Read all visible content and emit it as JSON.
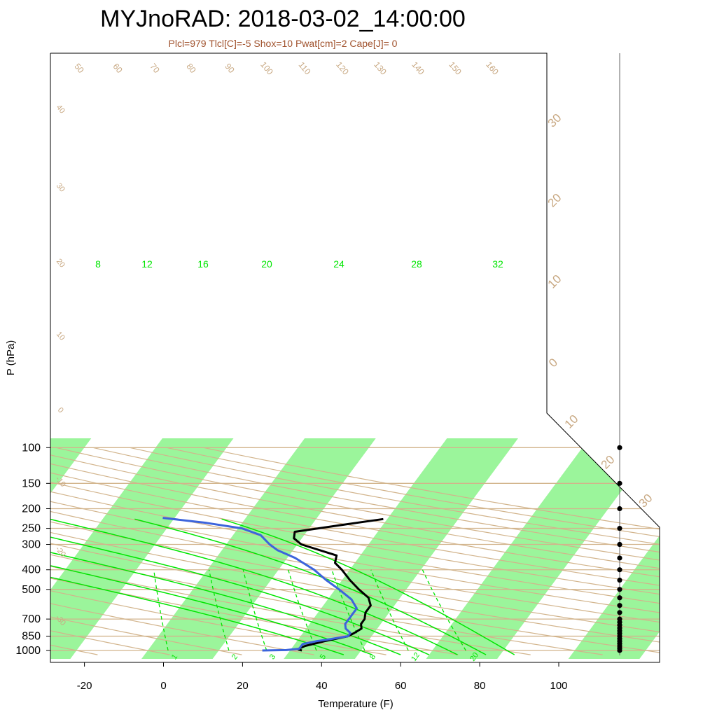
{
  "chart_data": {
    "type": "line",
    "title": "MYJnoRAD: 2018-03-02_14:00:00",
    "subtitle": "Plcl=979 Tlcl[C]=-5 Shox=10 Pwat[cm]=2 Cape[J]= 0",
    "xlabel": "Temperature (F)",
    "ylabel": "P (hPa)",
    "xlim": [
      -28,
      124
    ],
    "ylim": [
      1050,
      100
    ],
    "y_scale": "log",
    "xticks": [
      -20,
      0,
      20,
      40,
      60,
      80,
      100
    ],
    "yticks": [
      100,
      150,
      200,
      250,
      300,
      400,
      500,
      700,
      850,
      1000
    ],
    "series": [
      {
        "color": "#000000",
        "points": [
          {
            "p": 1000,
            "t": 35
          },
          {
            "p": 990,
            "t": 34
          },
          {
            "p": 975,
            "t": 34
          },
          {
            "p": 950,
            "t": 35
          },
          {
            "p": 925,
            "t": 37
          },
          {
            "p": 900,
            "t": 39
          },
          {
            "p": 880,
            "t": 41
          },
          {
            "p": 850,
            "t": 44
          },
          {
            "p": 820,
            "t": 45
          },
          {
            "p": 780,
            "t": 46
          },
          {
            "p": 740,
            "t": 45
          },
          {
            "p": 700,
            "t": 45
          },
          {
            "p": 650,
            "t": 44
          },
          {
            "p": 600,
            "t": 44
          },
          {
            "p": 550,
            "t": 42
          },
          {
            "p": 500,
            "t": 38
          },
          {
            "p": 450,
            "t": 34
          },
          {
            "p": 400,
            "t": 30
          },
          {
            "p": 370,
            "t": 27
          },
          {
            "p": 340,
            "t": 26
          },
          {
            "p": 300,
            "t": 15
          },
          {
            "p": 280,
            "t": 12
          },
          {
            "p": 260,
            "t": 11
          },
          {
            "p": 240,
            "t": 22
          },
          {
            "p": 225,
            "t": 31
          }
        ]
      },
      {
        "color": "#3c64dc",
        "points": [
          {
            "p": 1000,
            "t": 25
          },
          {
            "p": 995,
            "t": 31
          },
          {
            "p": 980,
            "t": 34
          },
          {
            "p": 960,
            "t": 34
          },
          {
            "p": 930,
            "t": 34
          },
          {
            "p": 900,
            "t": 37
          },
          {
            "p": 880,
            "t": 40
          },
          {
            "p": 850,
            "t": 44
          },
          {
            "p": 820,
            "t": 44
          },
          {
            "p": 780,
            "t": 42
          },
          {
            "p": 740,
            "t": 41
          },
          {
            "p": 700,
            "t": 41
          },
          {
            "p": 650,
            "t": 41
          },
          {
            "p": 620,
            "t": 41
          },
          {
            "p": 560,
            "t": 38
          },
          {
            "p": 500,
            "t": 33
          },
          {
            "p": 450,
            "t": 28
          },
          {
            "p": 400,
            "t": 23
          },
          {
            "p": 350,
            "t": 16
          },
          {
            "p": 320,
            "t": 10
          },
          {
            "p": 300,
            "t": 7
          },
          {
            "p": 270,
            "t": 3
          },
          {
            "p": 250,
            "t": -3
          },
          {
            "p": 235,
            "t": -13
          },
          {
            "p": 222,
            "t": -25
          }
        ]
      }
    ],
    "isotherm_labels": [
      "50",
      "60",
      "70",
      "80",
      "90",
      "100",
      "110",
      "120",
      "130",
      "140",
      "150",
      "160"
    ],
    "isotherms_c": [
      10,
      20,
      30,
      40,
      50,
      60,
      70,
      80,
      90,
      100,
      110,
      120,
      130,
      140,
      150,
      160
    ],
    "dry_adiabat_labels": [
      "40",
      "30",
      "20",
      "10",
      "0",
      "-10",
      "-20",
      "-30"
    ],
    "mixing_ratio_labels": [
      "1",
      "2",
      "3",
      "5",
      "8",
      "12",
      "20"
    ],
    "moist_adiabat_labels": [
      "8",
      "12",
      "16",
      "20",
      "24",
      "28",
      "32"
    ],
    "wind_label_ticks": [
      "30",
      "20",
      "10",
      "0",
      "10",
      "20",
      "30"
    ],
    "legend": "none",
    "grid": true,
    "colors": {
      "band": "#9bf59b",
      "isotherm": "#d2b48c",
      "isotherm_label": "#c8a882",
      "adiabat": "#d2b48c",
      "moist_adiabat": "#00e600",
      "mixing_ratio": "#00e600",
      "temperature": "#000000",
      "dewpoint": "#3c64dc",
      "subtitle": "#a0522d"
    },
    "wind_levels": [
      1000,
      975,
      950,
      925,
      900,
      875,
      850,
      825,
      800,
      775,
      750,
      725,
      700,
      650,
      600,
      550,
      500,
      450,
      400,
      350,
      300,
      250,
      200,
      150,
      100
    ]
  }
}
